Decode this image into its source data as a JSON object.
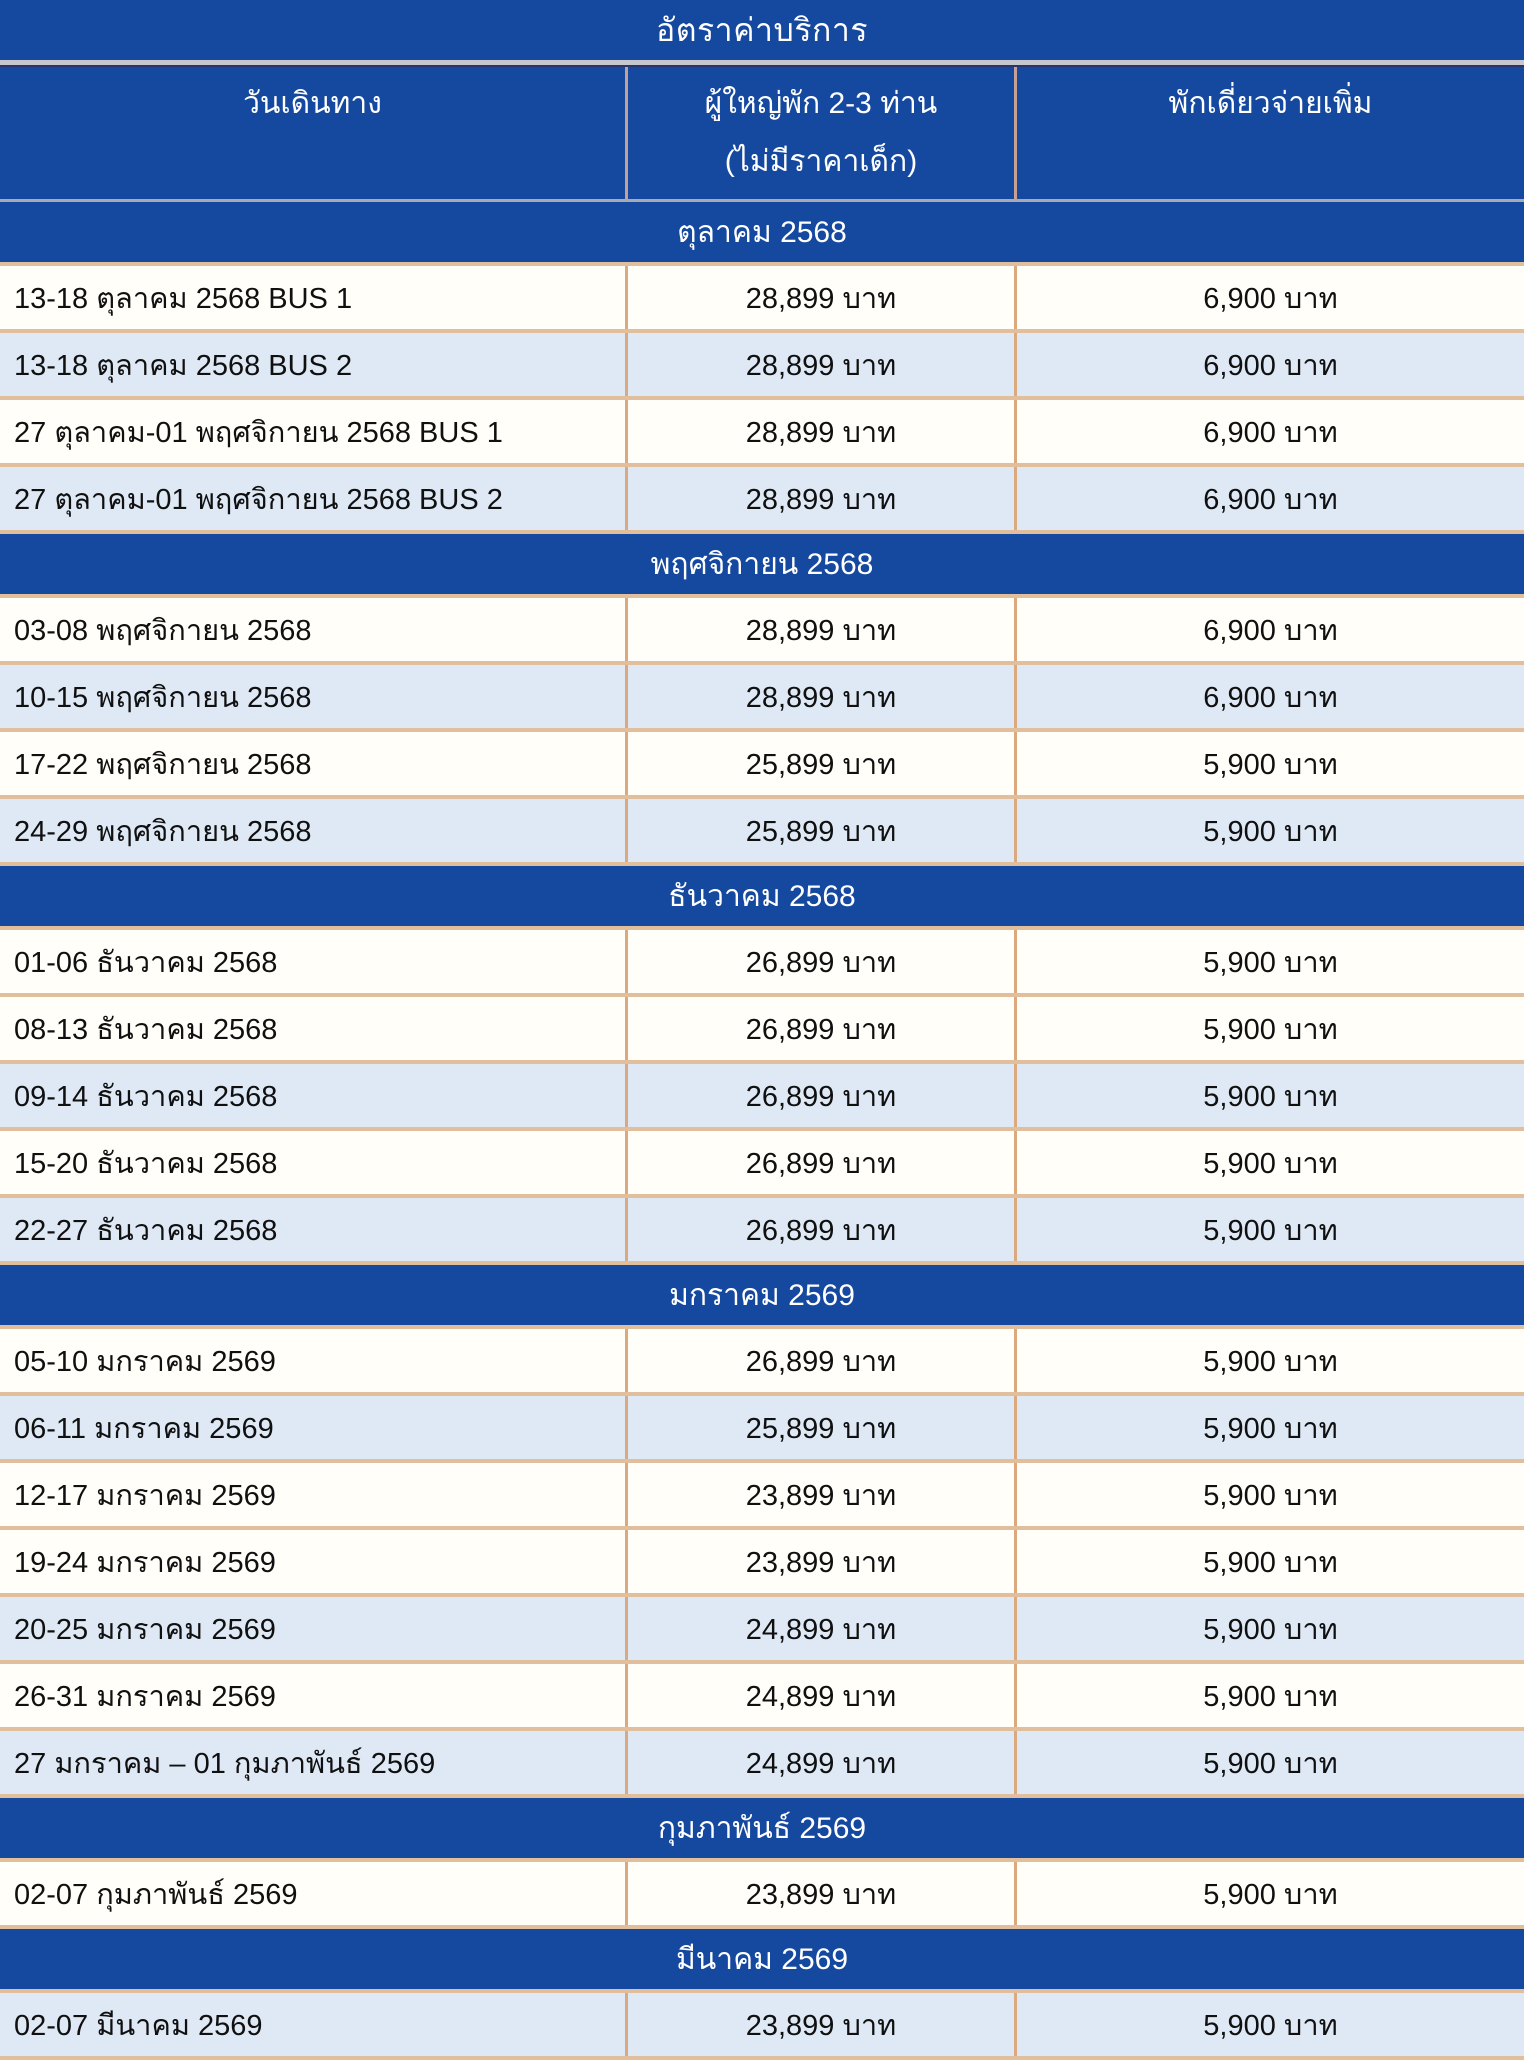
{
  "table": {
    "title": "อัตราค่าบริการ",
    "columns": {
      "date": "วันเดินทาง",
      "adult_line1": "ผู้ใหญ่พัก 2-3 ท่าน",
      "adult_line2": "(ไม่มีราคาเด็ก)",
      "single": "พักเดี่ยวจ่ายเพิ่ม"
    },
    "colors": {
      "header_blue": "#15489F",
      "row_white": "#FFFEF9",
      "row_blue": "#DEE9F5",
      "border_horizontal": "#E2BF9C",
      "border_vertical": "#DCA97E",
      "divider_gray": "#C7C7CF",
      "text_white": "#FFFFFF",
      "text_black": "#101010"
    },
    "sections": [
      {
        "month": "ตุลาคม 2568",
        "rows": [
          {
            "date": "13-18 ตุลาคม 2568 BUS 1",
            "adult": "28,899 บาท",
            "single": "6,900 บาท",
            "shade": "white"
          },
          {
            "date": "13-18 ตุลาคม 2568 BUS 2",
            "adult": "28,899 บาท",
            "single": "6,900 บาท",
            "shade": "blue"
          },
          {
            "date": "27 ตุลาคม-01 พฤศจิกายน 2568 BUS 1",
            "adult": "28,899 บาท",
            "single": "6,900 บาท",
            "shade": "white"
          },
          {
            "date": "27 ตุลาคม-01 พฤศจิกายน 2568 BUS 2",
            "adult": "28,899 บาท",
            "single": "6,900 บาท",
            "shade": "blue"
          }
        ]
      },
      {
        "month": "พฤศจิกายน 2568",
        "rows": [
          {
            "date": "03-08 พฤศจิกายน 2568",
            "adult": "28,899 บาท",
            "single": "6,900 บาท",
            "shade": "white"
          },
          {
            "date": "10-15 พฤศจิกายน 2568",
            "adult": "28,899 บาท",
            "single": "6,900 บาท",
            "shade": "blue"
          },
          {
            "date": "17-22 พฤศจิกายน 2568",
            "adult": "25,899 บาท",
            "single": "5,900 บาท",
            "shade": "white"
          },
          {
            "date": "24-29 พฤศจิกายน 2568",
            "adult": "25,899 บาท",
            "single": "5,900 บาท",
            "shade": "blue"
          }
        ]
      },
      {
        "month": "ธันวาคม 2568",
        "rows": [
          {
            "date": "01-06 ธันวาคม 2568",
            "adult": "26,899 บาท",
            "single": "5,900 บาท",
            "shade": "white"
          },
          {
            "date": "08-13 ธันวาคม 2568",
            "adult": "26,899 บาท",
            "single": "5,900 บาท",
            "shade": "white"
          },
          {
            "date": "09-14 ธันวาคม 2568",
            "adult": "26,899 บาท",
            "single": "5,900 บาท",
            "shade": "blue"
          },
          {
            "date": "15-20 ธันวาคม 2568",
            "adult": "26,899 บาท",
            "single": "5,900 บาท",
            "shade": "white"
          },
          {
            "date": "22-27 ธันวาคม 2568",
            "adult": "26,899 บาท",
            "single": "5,900 บาท",
            "shade": "blue"
          }
        ]
      },
      {
        "month": "มกราคม 2569",
        "rows": [
          {
            "date": "05-10 มกราคม 2569",
            "adult": "26,899 บาท",
            "single": "5,900 บาท",
            "shade": "white"
          },
          {
            "date": "06-11 มกราคม 2569",
            "adult": "25,899 บาท",
            "single": "5,900 บาท",
            "shade": "blue"
          },
          {
            "date": "12-17 มกราคม 2569",
            "adult": "23,899 บาท",
            "single": "5,900 บาท",
            "shade": "white"
          },
          {
            "date": "19-24 มกราคม 2569",
            "adult": "23,899 บาท",
            "single": "5,900 บาท",
            "shade": "white"
          },
          {
            "date": "20-25 มกราคม 2569",
            "adult": "24,899 บาท",
            "single": "5,900 บาท",
            "shade": "blue"
          },
          {
            "date": "26-31 มกราคม 2569",
            "adult": "24,899 บาท",
            "single": "5,900 บาท",
            "shade": "white"
          },
          {
            "date": "27 มกราคม – 01 กุมภาพันธ์ 2569",
            "adult": "24,899 บาท",
            "single": "5,900 บาท",
            "shade": "blue"
          }
        ]
      },
      {
        "month": "กุมภาพันธ์ 2569",
        "rows": [
          {
            "date": "02-07 กุมภาพันธ์ 2569",
            "adult": "23,899 บาท",
            "single": "5,900 บาท",
            "shade": "white"
          }
        ]
      },
      {
        "month": "มีนาคม 2569",
        "rows": [
          {
            "date": "02-07 มีนาคม 2569",
            "adult": "23,899 บาท",
            "single": "5,900 บาท",
            "shade": "blue"
          }
        ]
      }
    ]
  }
}
